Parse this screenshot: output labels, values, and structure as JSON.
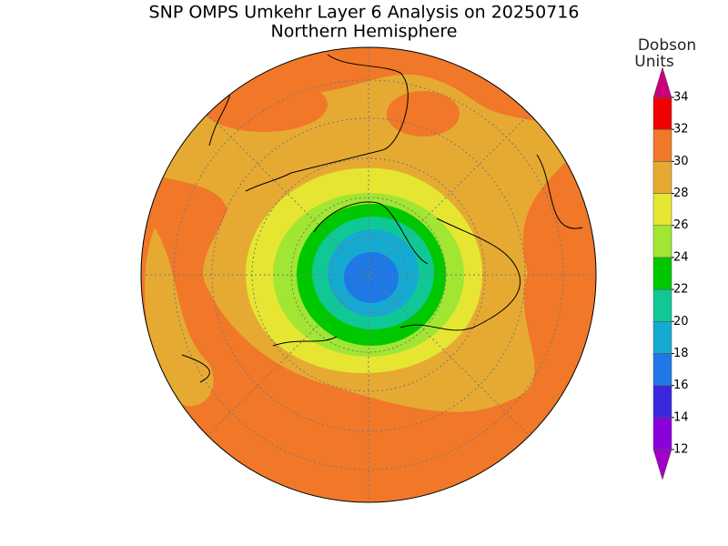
{
  "title": "SNP OMPS Umkehr Layer 6 Analysis on 20250716",
  "subtitle": "Northern Hemisphere",
  "colorbar": {
    "label_lines": [
      "Dobson",
      "Units"
    ],
    "ticks": [
      12,
      14,
      16,
      18,
      20,
      22,
      24,
      26,
      28,
      30,
      32,
      34
    ],
    "colors": [
      "#8a00dc",
      "#3a28e0",
      "#1e78e6",
      "#14aad2",
      "#10c896",
      "#00c800",
      "#a0e632",
      "#e6e632",
      "#e6aa32",
      "#f07828",
      "#f00000"
    ],
    "under_color": "#a000c8",
    "over_color": "#c8007c"
  }
}
